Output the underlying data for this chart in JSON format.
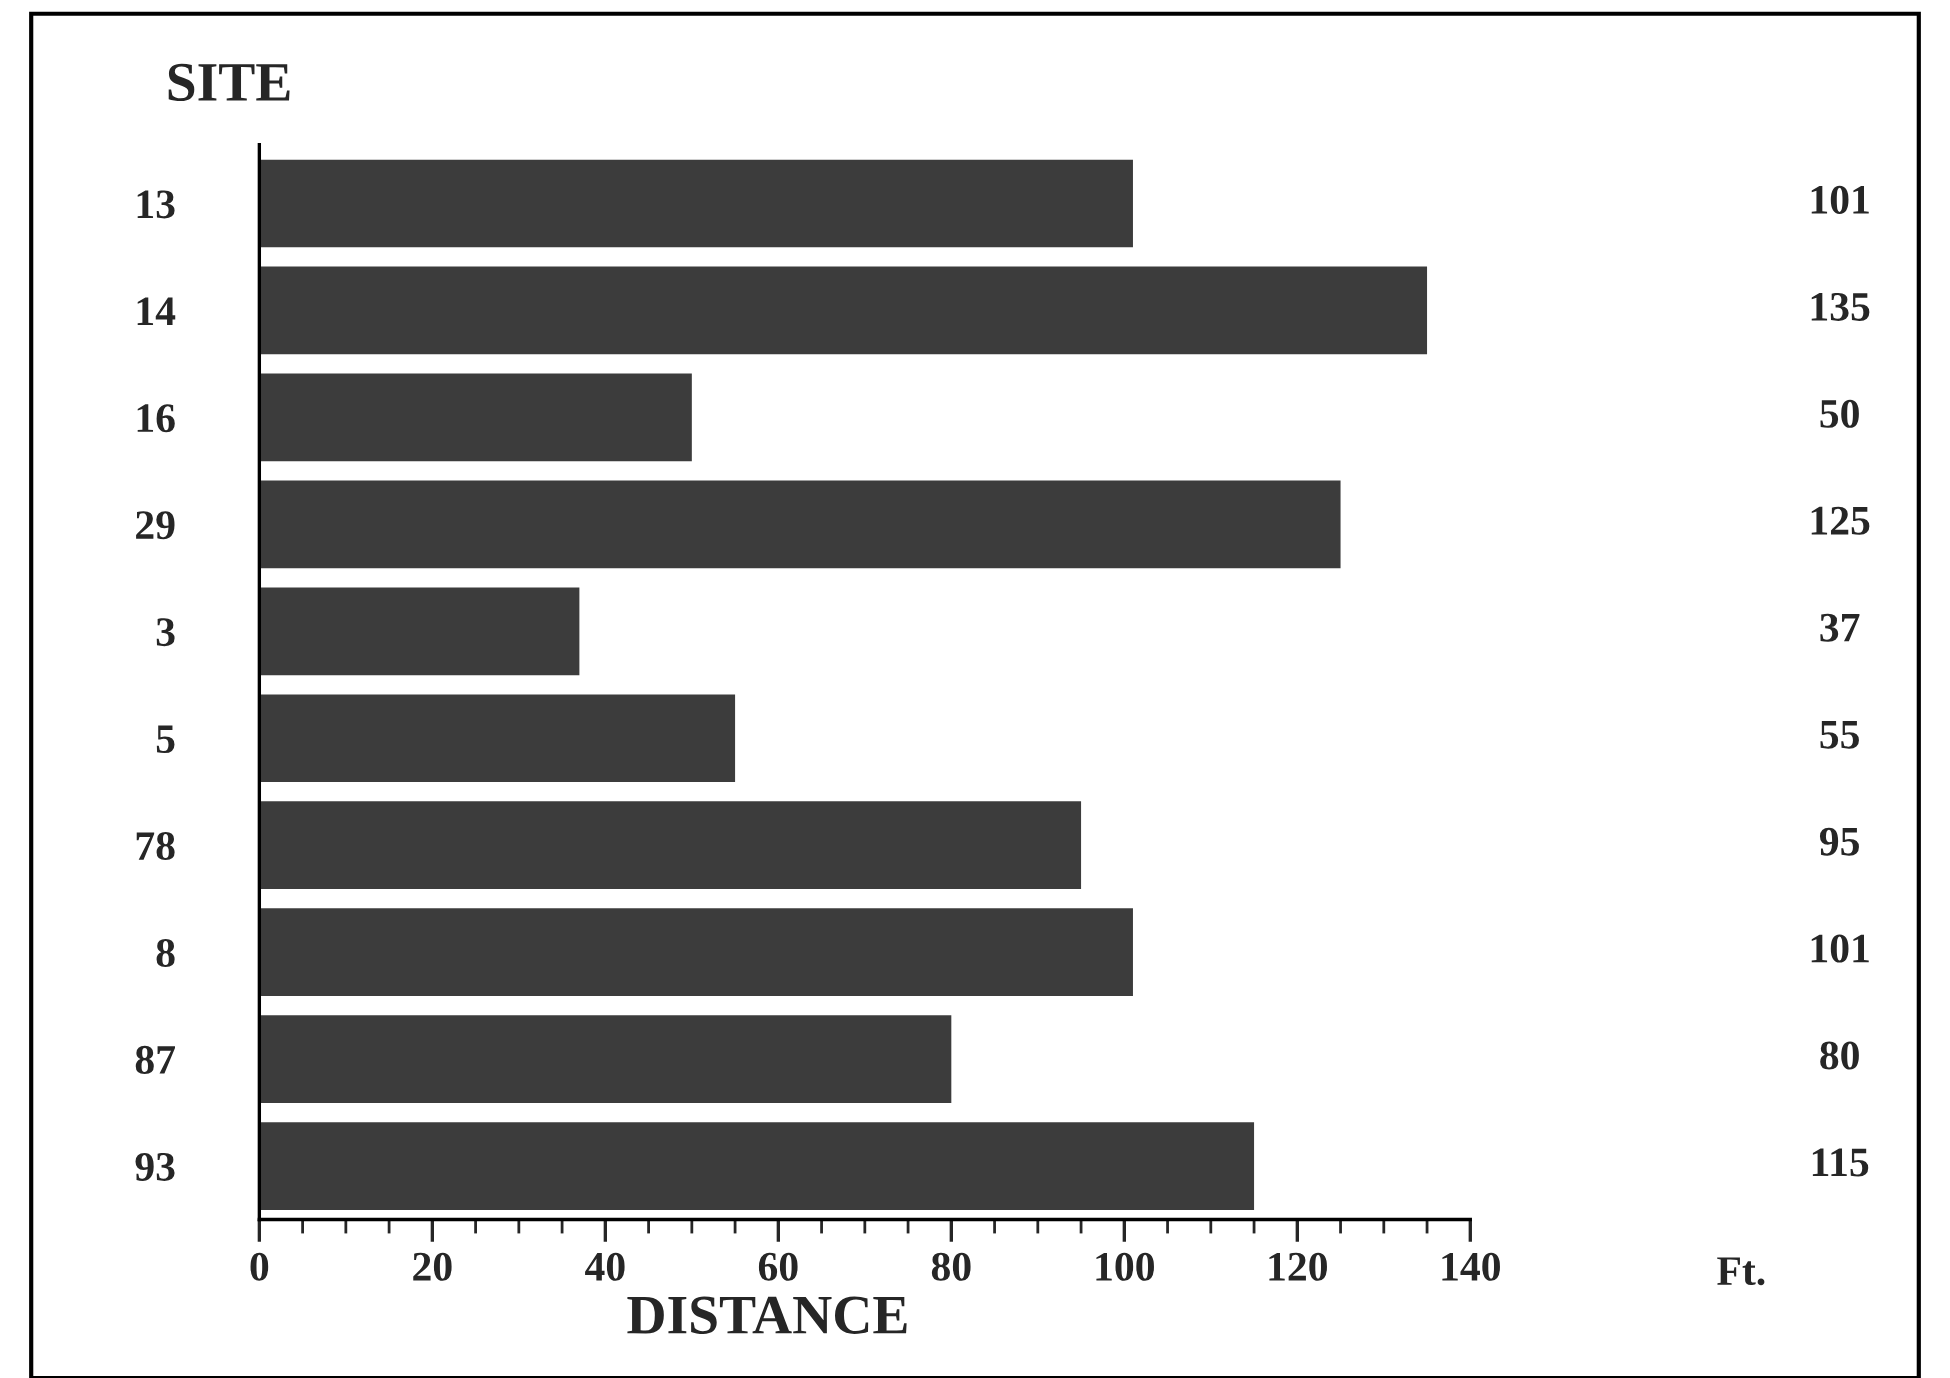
{
  "chart_data": {
    "type": "bar",
    "orientation": "horizontal",
    "xlabel": "DISTANCE",
    "ylabel": "SITE",
    "categories": [
      "13",
      "14",
      "16",
      "29",
      "3",
      "5",
      "78",
      "8",
      "87",
      "93"
    ],
    "values": [
      101,
      135,
      50,
      125,
      37,
      55,
      95,
      101,
      80,
      115
    ],
    "color": "#3c3c3c",
    "data_labels": true,
    "xlim": [
      0,
      140
    ],
    "xticks": [
      0,
      20,
      40,
      60,
      80,
      100,
      120,
      140
    ],
    "annotations": [
      "Ft."
    ],
    "grid": false,
    "legend": false
  }
}
